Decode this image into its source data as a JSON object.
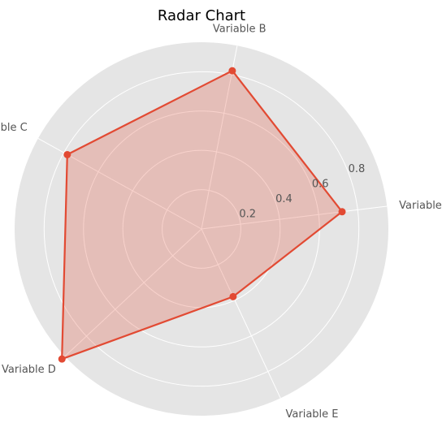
{
  "chart_data": {
    "type": "radar",
    "title": "Radar Chart",
    "categories": [
      "Variable A",
      "Variable B",
      "Variable C",
      "Variable D",
      "Variable E"
    ],
    "series": [
      {
        "values": [
          0.72,
          0.82,
          0.78,
          0.97,
          0.38
        ]
      }
    ],
    "radial_ticks": [
      "0.2",
      "0.4",
      "0.6",
      "0.8"
    ],
    "rlim": [
      0,
      0.95
    ],
    "grid": true,
    "colors": {
      "background": "#e5e5e5",
      "grid": "#ffffff",
      "series_line": "#e24a33",
      "series_fill": "#e24a33",
      "text": "#555555"
    }
  }
}
